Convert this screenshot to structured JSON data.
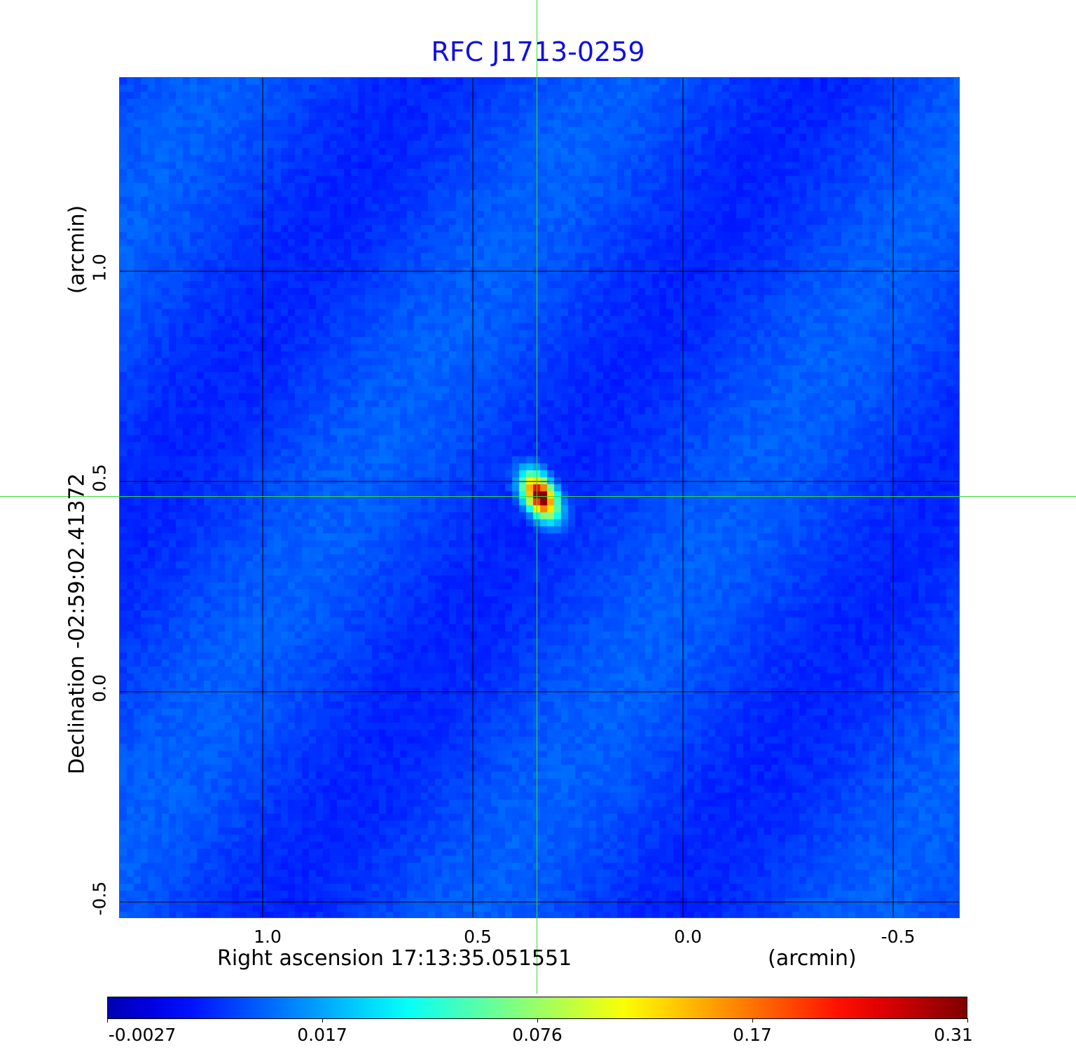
{
  "chart_data": {
    "type": "heatmap",
    "title": "RFC J1713-0259",
    "xlabel": "Right ascension  17:13:35.051551",
    "xunit": "(arcmin)",
    "ylabel": "Declination  -02:59:02.41372",
    "yunit": "(arcmin)",
    "xlim": [
      1.34,
      -0.66
    ],
    "ylim": [
      -0.54,
      1.46
    ],
    "xticks": [
      "1.0",
      "0.5",
      "0.0",
      "-0.5"
    ],
    "xtick_values": [
      1.0,
      0.5,
      0.0,
      -0.5
    ],
    "yticks": [
      "1.0",
      "0.5",
      "0.0",
      "-0.5"
    ],
    "ytick_values": [
      1.0,
      0.5,
      0.0,
      -0.5
    ],
    "grid": true,
    "colormap": "jet",
    "colorbar": {
      "ticks": [
        "-0.0027",
        "0.017",
        "0.076",
        "0.17",
        "0.31"
      ],
      "range": [
        -0.0027,
        0.31
      ],
      "placement": "bottom"
    },
    "source": {
      "x": 0.34,
      "y": 0.465,
      "peak": 0.31
    },
    "crosshair": {
      "x": 0.34,
      "y": 0.46,
      "color": "#33dd33"
    },
    "background_level": 0.0
  }
}
